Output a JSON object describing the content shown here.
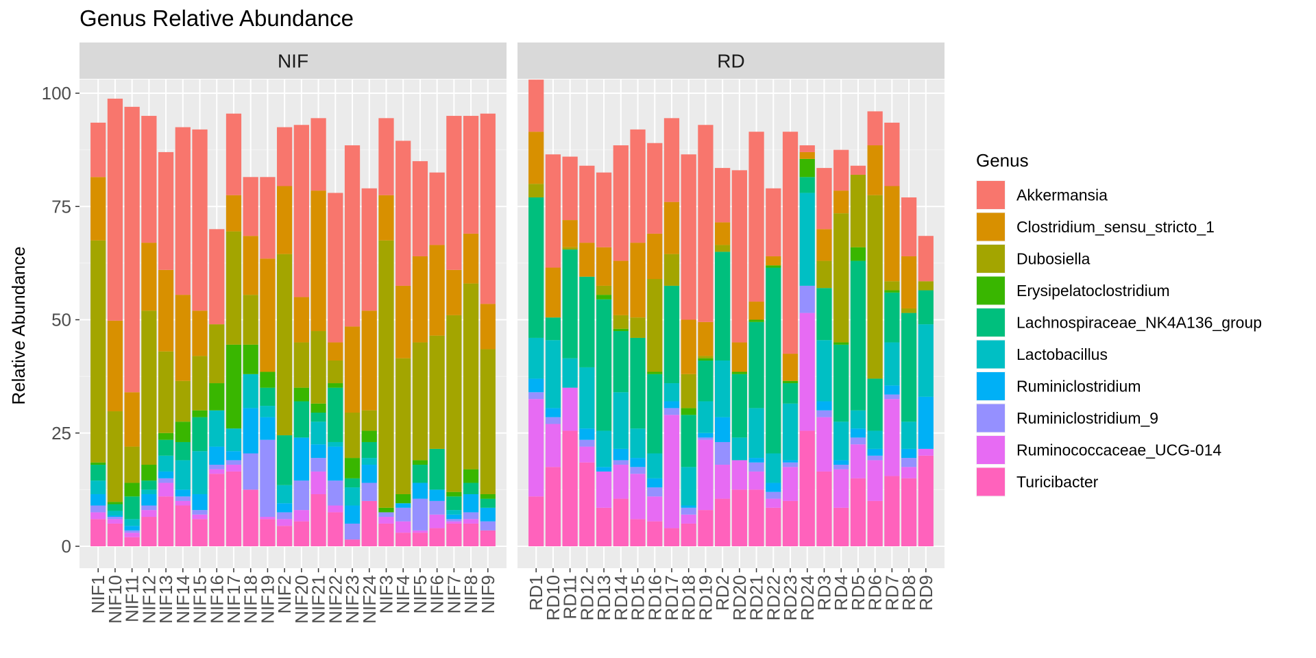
{
  "chart_data": {
    "type": "bar",
    "stacked": true,
    "title": "Genus Relative Abundance",
    "ylabel": "Relative Abundance",
    "xlabel": "",
    "ylim": [
      0,
      100
    ],
    "yticks": [
      0,
      25,
      50,
      75,
      100
    ],
    "grid": true,
    "legend": {
      "title": "Genus",
      "position": "right"
    },
    "genera": [
      "Akkermansia",
      "Clostridium_sensu_stricto_1",
      "Dubosiella",
      "Erysipelatoclostridium",
      "Lachnospiraceae_NK4A136_group",
      "Lactobacillus",
      "Ruminiclostridium",
      "Ruminiclostridium_9",
      "Ruminococcaceae_UCG-014",
      "Turicibacter"
    ],
    "colors": [
      "#F8766D",
      "#D89000",
      "#A3A500",
      "#39B600",
      "#00BF7D",
      "#00BFC4",
      "#00B0F6",
      "#9590FF",
      "#E76BF3",
      "#FF62BC"
    ],
    "panels": [
      {
        "name": "NIF",
        "samples": [
          {
            "id": "NIF1",
            "values": [
              12,
              14,
              49,
              0.5,
              3.5,
              3,
              2.5,
              1.5,
              1.5,
              6
            ]
          },
          {
            "id": "NIF10",
            "values": [
              49,
              20,
              20,
              0.5,
              1.5,
              1,
              0.3,
              0.5,
              1,
              5
            ]
          },
          {
            "id": "NIF11",
            "values": [
              63,
              12,
              8,
              3,
              5,
              1.5,
              1,
              0.5,
              1,
              2
            ]
          },
          {
            "id": "NIF12",
            "values": [
              28,
              15,
              34,
              3.5,
              2,
              1,
              2.5,
              1,
              1.5,
              6.5
            ]
          },
          {
            "id": "NIF13",
            "values": [
              26,
              18,
              18,
              1.5,
              3.5,
              3.5,
              1.5,
              1,
              3,
              11
            ]
          },
          {
            "id": "NIF14",
            "values": [
              37,
              19,
              9,
              4.5,
              4,
              6.5,
              1.5,
              1,
              1,
              9
            ]
          },
          {
            "id": "NIF15",
            "values": [
              40,
              10,
              12,
              1.5,
              7.5,
              9.5,
              3.5,
              1,
              1,
              6
            ]
          },
          {
            "id": "NIF16",
            "values": [
              21,
              0,
              13,
              6,
              0,
              8,
              4,
              1,
              1,
              16
            ]
          },
          {
            "id": "NIF17",
            "values": [
              18,
              8,
              25,
              18.5,
              0,
              5,
              2,
              1,
              1.5,
              16.5
            ]
          },
          {
            "id": "NIF18",
            "values": [
              13,
              13,
              11,
              6.5,
              0,
              7.5,
              10,
              8,
              0,
              12.5
            ]
          },
          {
            "id": "NIF19",
            "values": [
              18,
              25,
              0,
              3.5,
              4,
              2.5,
              5,
              17,
              0.5,
              6
            ]
          },
          {
            "id": "NIF2",
            "values": [
              13,
              15,
              40,
              0,
              11,
              4,
              2,
              1.5,
              1.5,
              4.5
            ]
          },
          {
            "id": "NIF20",
            "values": [
              38,
              10,
              10,
              3,
              8,
              0,
              9.5,
              6.5,
              2.5,
              5.5
            ]
          },
          {
            "id": "NIF21",
            "values": [
              16,
              31,
              16,
              2,
              2,
              5,
              3,
              3,
              5,
              11.5
            ]
          },
          {
            "id": "NIF22",
            "values": [
              33,
              4,
              5,
              1,
              12,
              1,
              7.5,
              5.5,
              1.5,
              7.5
            ]
          },
          {
            "id": "NIF23",
            "values": [
              40,
              19,
              10,
              4.5,
              2,
              4,
              4,
              3.5,
              0,
              1.5
            ]
          },
          {
            "id": "NIF24",
            "values": [
              27,
              22,
              4.5,
              2.5,
              3.5,
              1.5,
              4,
              4,
              0,
              10
            ]
          },
          {
            "id": "NIF3",
            "values": [
              17,
              10,
              59,
              1,
              0,
              0,
              0,
              1,
              1.5,
              5
            ]
          },
          {
            "id": "NIF4",
            "values": [
              32,
              16,
              30,
              2,
              0,
              0,
              1,
              3,
              2.5,
              3
            ]
          },
          {
            "id": "NIF5",
            "values": [
              21,
              19,
              26,
              1,
              4,
              0,
              3.5,
              7,
              0.5,
              3
            ]
          },
          {
            "id": "NIF6",
            "values": [
              16,
              20,
              25,
              0,
              9,
              0,
              2.5,
              3,
              3,
              4
            ]
          },
          {
            "id": "NIF7",
            "values": [
              34,
              10,
              39,
              1,
              3,
              1,
              1,
              0.5,
              0.5,
              5
            ]
          },
          {
            "id": "NIF8",
            "values": [
              26,
              11,
              41,
              3,
              2.5,
              0,
              4,
              1.5,
              1,
              5
            ]
          },
          {
            "id": "NIF9",
            "values": [
              42,
              10,
              32,
              1,
              2,
              0,
              3,
              2,
              0,
              3.5
            ]
          }
        ]
      },
      {
        "name": "RD",
        "samples": [
          {
            "id": "RD1",
            "values": [
              11.5,
              11.5,
              3,
              0,
              31,
              9,
              3,
              1.5,
              21.5,
              11
            ]
          },
          {
            "id": "RD10",
            "values": [
              25,
              11,
              0,
              0,
              5,
              15,
              2,
              1.5,
              9.5,
              17.5
            ]
          },
          {
            "id": "RD11",
            "values": [
              14,
              6,
              0.5,
              0,
              24,
              6.5,
              0,
              0,
              9.5,
              25.5
            ]
          },
          {
            "id": "RD12",
            "values": [
              17,
              7.5,
              0,
              0,
              20,
              13.5,
              2.5,
              1.5,
              3.5,
              18.5
            ]
          },
          {
            "id": "RD13",
            "values": [
              16.5,
              8.5,
              2,
              1,
              29,
              8,
              1,
              0,
              8,
              8.5
            ]
          },
          {
            "id": "RD14",
            "values": [
              25.5,
              12,
              3,
              0.5,
              13.5,
              12.5,
              2.5,
              1,
              7.5,
              10.5
            ]
          },
          {
            "id": "RD15",
            "values": [
              25,
              16.5,
              4.5,
              0,
              20,
              6.5,
              2,
              1.5,
              10,
              6
            ]
          },
          {
            "id": "RD16",
            "values": [
              20,
              10,
              20.5,
              0.5,
              17.5,
              5.5,
              2,
              2,
              5.5,
              5.5
            ]
          },
          {
            "id": "RD17",
            "values": [
              18.5,
              11.5,
              7,
              0,
              21.5,
              4,
              1.5,
              1.5,
              25,
              4
            ]
          },
          {
            "id": "RD18",
            "values": [
              36.5,
              12,
              7.5,
              1.5,
              11.5,
              8.5,
              0.5,
              1.5,
              2,
              5
            ]
          },
          {
            "id": "RD19",
            "values": [
              43.5,
              7.5,
              0.5,
              0.5,
              9,
              7,
              1,
              0.5,
              15.5,
              8
            ]
          },
          {
            "id": "RD2",
            "values": [
              12,
              5,
              1.5,
              0,
              24,
              12.5,
              5.5,
              5,
              7.5,
              10.5
            ]
          },
          {
            "id": "RD20",
            "values": [
              38,
              6.5,
              0,
              0.5,
              14,
              5,
              0,
              0,
              6.5,
              12.5
            ]
          },
          {
            "id": "RD21",
            "values": [
              37.5,
              4,
              0,
              0.5,
              19,
              11,
              1,
              2,
              4,
              12.5
            ]
          },
          {
            "id": "RD22",
            "values": [
              15,
              2,
              0,
              0.5,
              41,
              6.5,
              2,
              1.5,
              2,
              8.5
            ]
          },
          {
            "id": "RD23",
            "values": [
              49,
              6,
              0,
              0.5,
              4.5,
              12.5,
              0.5,
              1,
              7.5,
              10
            ]
          },
          {
            "id": "RD24",
            "values": [
              1.5,
              1.5,
              0,
              4,
              3.5,
              20.5,
              0,
              6,
              26,
              25.5
            ]
          },
          {
            "id": "RD3",
            "values": [
              13.5,
              7,
              6,
              0,
              11.5,
              13.5,
              2,
              1.5,
              12,
              16.5
            ]
          },
          {
            "id": "RD4",
            "values": [
              9,
              5,
              28.5,
              0.5,
              17,
              8.5,
              1,
              1,
              8.5,
              8.5
            ]
          },
          {
            "id": "RD5",
            "values": [
              2,
              0,
              16,
              3,
              33,
              4,
              2,
              1.5,
              7.5,
              15
            ]
          },
          {
            "id": "RD6",
            "values": [
              7.5,
              11,
              40.5,
              0,
              11.5,
              4,
              1.5,
              1,
              9,
              10
            ]
          },
          {
            "id": "RD7",
            "values": [
              14,
              21,
              2,
              0.5,
              11,
              9.5,
              2,
              1,
              17,
              15.5
            ]
          },
          {
            "id": "RD8",
            "values": [
              13,
              11.5,
              1,
              0,
              24,
              6,
              2,
              2,
              2.5,
              15
            ]
          },
          {
            "id": "RD9",
            "values": [
              10,
              0,
              2,
              0,
              7.5,
              16,
              11.5,
              0,
              1.5,
              20
            ]
          }
        ]
      }
    ]
  }
}
